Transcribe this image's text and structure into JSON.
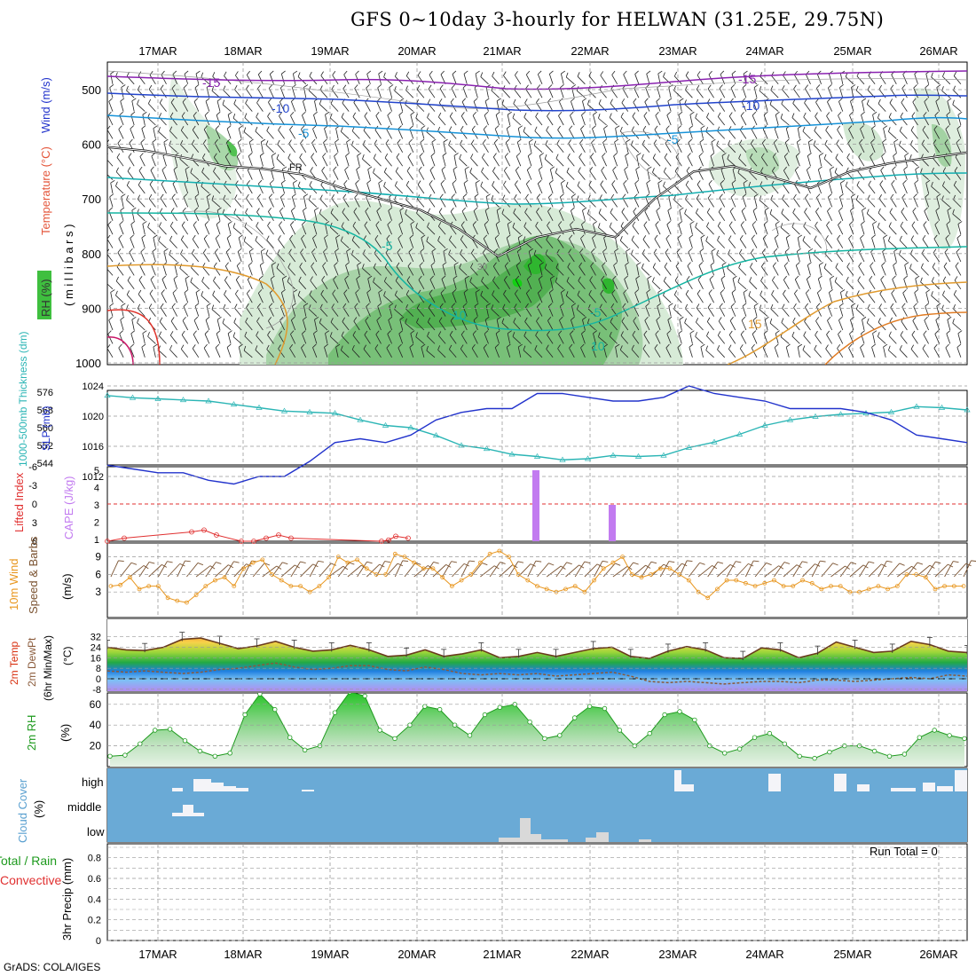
{
  "title": "GFS 0~10day 3-hourly for HELWAN (31.25E, 29.75N)",
  "credit": "GrADS: COLA/IGES",
  "colors": {
    "slp": "#2233cc",
    "thickness": "#2bb5b5",
    "lifted_index": "#e03030",
    "cape": "#c27bf0",
    "wind_speed": "#e8961e",
    "barb": "#7a5230",
    "rh": "#1e9a1e",
    "cloud_bg": "#6aaad6",
    "cloud_bar": "#d9d9d9",
    "temp_frz": "#111111"
  },
  "chart_data": [
    {
      "type": "area",
      "panel": "upper-air cross section",
      "ylabel_parts": [
        "RH (%)",
        "Temperature (°C)",
        "Wind (m/s)"
      ],
      "ylabel_units": "( m i l l i b a r s )",
      "yticks": [
        500,
        600,
        700,
        800,
        900,
        1000
      ],
      "x_dates": [
        "17MAR",
        "18MAR",
        "19MAR",
        "20MAR",
        "21MAR",
        "22MAR",
        "23MAR",
        "24MAR",
        "25MAR",
        "26MAR"
      ],
      "contour_labels": [
        "-15",
        "-10",
        "-5",
        "FR",
        "30",
        "-5",
        "10",
        "-5",
        "10",
        "15",
        "-15",
        "-10",
        "-5"
      ],
      "freezing_level_mb": [
        605,
        612,
        625,
        640,
        645,
        655,
        680,
        700,
        720,
        755,
        805,
        770,
        755,
        770,
        700,
        650,
        640,
        660,
        680,
        650,
        635,
        625,
        615
      ]
    },
    {
      "type": "line",
      "panel": "thickness / slp",
      "ylabel_left": "1000-500mb Thickness (dm)",
      "ylabel_right": "SLP (mb)",
      "thickness_ticks": [
        "576",
        "568",
        "560",
        "552",
        "544"
      ],
      "slp_ticks": [
        "1024",
        "1020",
        "1016",
        "1012"
      ],
      "series": [
        {
          "name": "SLP (mb)",
          "values": [
            1013.5,
            1013,
            1012.5,
            1012.5,
            1011.5,
            1011,
            1012,
            1012,
            1014,
            1016.5,
            1017,
            1016.5,
            1017.5,
            1019.5,
            1020.5,
            1021,
            1021,
            1023,
            1023,
            1022.5,
            1022,
            1022,
            1022.5,
            1024,
            1023,
            1022.5,
            1022,
            1021,
            1021,
            1021,
            1020.5,
            1019.5,
            1017.5,
            1017,
            1016.5
          ]
        },
        {
          "name": "1000-500mb Thickness (dm)",
          "values": [
            574.5,
            573.5,
            573.0,
            572.5,
            572.0,
            570.5,
            569.0,
            567.5,
            567.0,
            566.5,
            563.5,
            561.0,
            560.0,
            556.5,
            552.0,
            550.5,
            548.0,
            547.0,
            545.5,
            546.0,
            547.5,
            547.0,
            547.5,
            551.0,
            553.5,
            557.0,
            561.0,
            563.5,
            565.0,
            566.0,
            566.5,
            567.0,
            569.5,
            569.0,
            568.0
          ]
        }
      ]
    },
    {
      "type": "bar",
      "panel": "lifted index / cape",
      "ylabel_left": "Lifted Index",
      "ylabel_right": "CAPE (J/kg)",
      "li_ticks": [
        "-6",
        "-3",
        "0",
        "3",
        "6"
      ],
      "cape_ticks": [
        "5",
        "4",
        "3",
        "2",
        "1"
      ],
      "cape_bars": [
        {
          "x": "21MAR 09Z",
          "value": 5
        },
        {
          "x": "22MAR 06Z",
          "value": 3
        }
      ],
      "lifted_index": [
        6,
        5.5,
        4.5,
        4.2,
        5,
        6,
        6,
        5.5,
        5,
        5.5,
        6,
        5.8,
        5.2,
        5.5
      ]
    },
    {
      "type": "line",
      "panel": "10m wind",
      "ylabel_left": "10m Wind",
      "ylabel_mid": "Speed & Barbs",
      "units": "(m/s)",
      "yticks": [
        "9",
        "6",
        "3"
      ],
      "series": [
        {
          "name": "10m Wind Speed",
          "values": [
            4,
            4.2,
            5.5,
            3.5,
            4,
            4,
            2,
            1.5,
            1.2,
            2.5,
            4,
            5,
            5.5,
            4,
            7,
            8,
            8.5,
            6,
            5,
            4,
            4,
            3,
            4,
            5.5,
            9,
            8,
            8.5,
            7,
            6,
            6,
            9.5,
            9,
            8,
            7,
            7,
            5.5,
            4,
            5,
            6,
            8,
            9.5,
            10,
            9,
            6,
            5,
            4,
            3.5,
            3,
            3.5,
            4,
            3,
            5,
            7,
            8,
            9,
            6,
            5.5,
            6,
            7,
            7,
            6,
            5,
            3,
            2,
            3.5,
            5,
            5,
            4.5,
            4,
            4.5,
            5,
            4,
            4,
            5,
            4.5,
            3.5,
            4,
            4,
            3,
            3,
            3.5,
            4,
            3.5,
            4,
            6,
            6,
            5.5,
            3.5,
            4,
            4,
            4
          ]
        }
      ]
    },
    {
      "type": "area",
      "panel": "2m temp / dewpoint",
      "ylabel_parts": [
        "2m Temp",
        "2m DewPt",
        "(6hr Min/Max)",
        "(°C)"
      ],
      "yticks": [
        "32",
        "24",
        "16",
        "8",
        "0",
        "-8"
      ],
      "series": [
        {
          "name": "2m Temp",
          "values": [
            24,
            22,
            21.5,
            24,
            30,
            31,
            27,
            23,
            25,
            28.5,
            24,
            21,
            22,
            25.5,
            22,
            17,
            18,
            22,
            17,
            19,
            22,
            16,
            17,
            20,
            17,
            20,
            23,
            24,
            17,
            15.5,
            21,
            24.5,
            22,
            16,
            15.5,
            23.5,
            22,
            16,
            19.5,
            28,
            24,
            20,
            21,
            28.5,
            26,
            21,
            20
          ]
        },
        {
          "name": "2m DewPt",
          "values": [
            6,
            5,
            6,
            5,
            4,
            5,
            7,
            8,
            10,
            12,
            9,
            7,
            8,
            10,
            10,
            7,
            6,
            9,
            7,
            4,
            3,
            4,
            3,
            4,
            2,
            3,
            4,
            5,
            2,
            -2,
            -3,
            -2,
            -3,
            -4,
            -3,
            -2,
            -2,
            -3,
            -1,
            -1,
            -2,
            -1,
            0,
            1,
            0,
            3,
            2
          ]
        }
      ]
    },
    {
      "type": "area",
      "panel": "2m RH",
      "ylabel": "2m RH",
      "units": "(%)",
      "yticks": [
        "60",
        "40",
        "20"
      ],
      "series": [
        {
          "name": "2m RH",
          "values": [
            10,
            11,
            22,
            35,
            36,
            25,
            15,
            10,
            13,
            50,
            70,
            55,
            28,
            16,
            20,
            52,
            72,
            68,
            35,
            27,
            40,
            58,
            55,
            40,
            30,
            50,
            57,
            60,
            43,
            27,
            30,
            47,
            58,
            56,
            35,
            20,
            32,
            50,
            53,
            45,
            20,
            13,
            17,
            28,
            32,
            22,
            10,
            8,
            14,
            20,
            20,
            15,
            10,
            12,
            28,
            35,
            30,
            27
          ]
        }
      ]
    },
    {
      "type": "bar",
      "panel": "cloud cover",
      "ylabel": "Cloud Cover",
      "units": "(%)",
      "levels": [
        "high",
        "middle",
        "low"
      ]
    },
    {
      "type": "bar",
      "panel": "precipitation",
      "ylabel_left": "Total / Rain",
      "ylabel_left2": "Convective",
      "ylabel_mid": "3hr Precip (mm)",
      "annotation": "Run Total = 0",
      "yticks": [
        "0.8",
        "0.6",
        "0.4",
        "0.2",
        "0"
      ],
      "values": []
    }
  ]
}
